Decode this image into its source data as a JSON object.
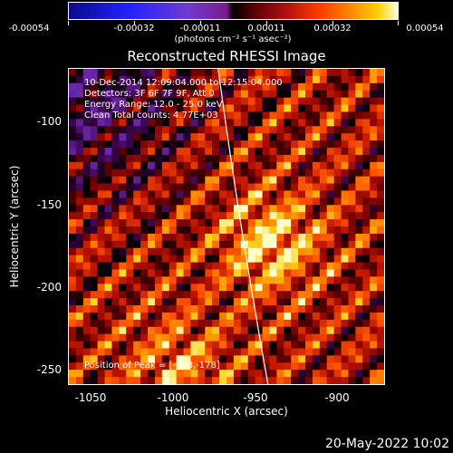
{
  "colorbar": {
    "ticks": [
      "-0.00054",
      "-0.00032",
      "-0.00011",
      "0.00011",
      "0.00032",
      "0.00054"
    ],
    "unit": "(photons cm⁻² s⁻¹ asec⁻²)"
  },
  "title": "Reconstructed RHESSI Image",
  "info": {
    "line1": "10-Dec-2014 12:09:04.000 to 12:15:04.000",
    "line2": "Detectors: 3F 6F 7F 9F, Att 0",
    "line3": "Energy Range: 12.0 - 25.0 keV",
    "line4": "Clean     Total counts: 4.77E+03"
  },
  "peak_label": "Position of Peak = [-938,-178]",
  "axes": {
    "xlabel": "Heliocentric X (arcsec)",
    "ylabel": "Heliocentric Y (arcsec)",
    "xticks": [
      "-1050",
      "-1000",
      "-950",
      "-900"
    ],
    "yticks": [
      "-100",
      "-150",
      "-200",
      "-250"
    ]
  },
  "timestamp": "20-May-2022 10:02",
  "chart_data": {
    "type": "heatmap",
    "title": "Reconstructed RHESSI Image",
    "xlabel": "Heliocentric X (arcsec)",
    "ylabel": "Heliocentric Y (arcsec)",
    "xlim": [
      -1060,
      -870
    ],
    "ylim": [
      -260,
      -75
    ],
    "colorbar_range": [
      -0.00054,
      0.00054
    ],
    "peak": [
      -938,
      -178
    ],
    "limb_curve": [
      [
        -970,
        -75
      ],
      [
        -940,
        -260
      ]
    ],
    "colors": {
      "negative": "#3a1cff",
      "zero": "#000000",
      "positive_low": "#b81000",
      "positive_mid": "#ff7a00",
      "positive_high": "#ffffc0"
    }
  }
}
